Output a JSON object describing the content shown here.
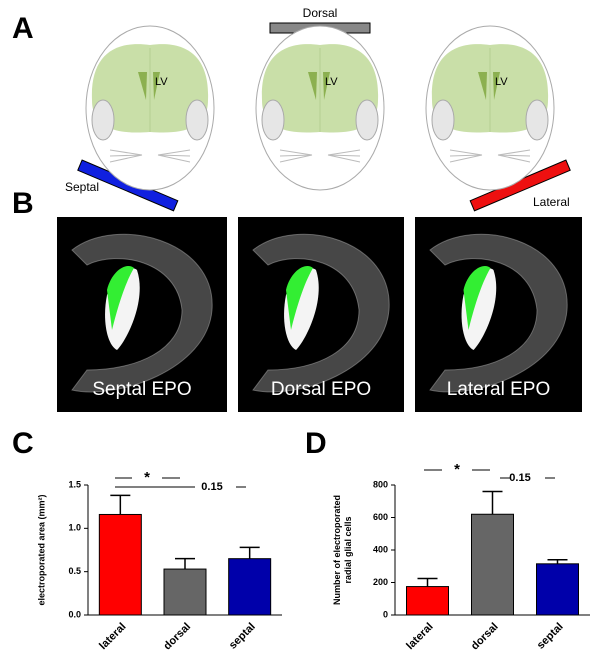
{
  "panel_labels": [
    "A",
    "B",
    "C",
    "D"
  ],
  "schematic": {
    "lv": "LV",
    "approaches": [
      "Septal",
      "Dorsal",
      "Lateral"
    ]
  },
  "images": {
    "captions": [
      "Septal EPO",
      "Dorsal EPO",
      "Lateral EPO"
    ]
  },
  "chart_data": [
    {
      "type": "bar",
      "ylabel": [
        "electroporated area (mm²)"
      ],
      "categories": [
        "lateral",
        "dorsal",
        "septal"
      ],
      "values": [
        1.16,
        0.53,
        0.65
      ],
      "errors": [
        0.22,
        0.12,
        0.13
      ],
      "colors": [
        "#ff0000",
        "#666666",
        "#0000aa"
      ],
      "ylim": [
        0,
        1.5
      ],
      "yticks": [
        {
          "value": 0,
          "label": "0.0"
        },
        {
          "value": 0.5,
          "label": "0.5"
        },
        {
          "value": 1,
          "label": "1.0"
        },
        {
          "value": 1.5,
          "label": "1.5"
        }
      ],
      "annotations": [
        "*",
        "0.15"
      ]
    },
    {
      "type": "bar",
      "ylabel": [
        "Number of electroporated",
        "radial glial cells"
      ],
      "categories": [
        "lateral",
        "dorsal",
        "septal"
      ],
      "values": [
        175,
        620,
        315
      ],
      "errors": [
        50,
        140,
        25
      ],
      "colors": [
        "#ff0000",
        "#666666",
        "#0000aa"
      ],
      "ylim": [
        0,
        800
      ],
      "yticks": [
        0,
        200,
        400,
        600,
        800
      ],
      "annotations": [
        "*",
        "0.15"
      ]
    }
  ]
}
